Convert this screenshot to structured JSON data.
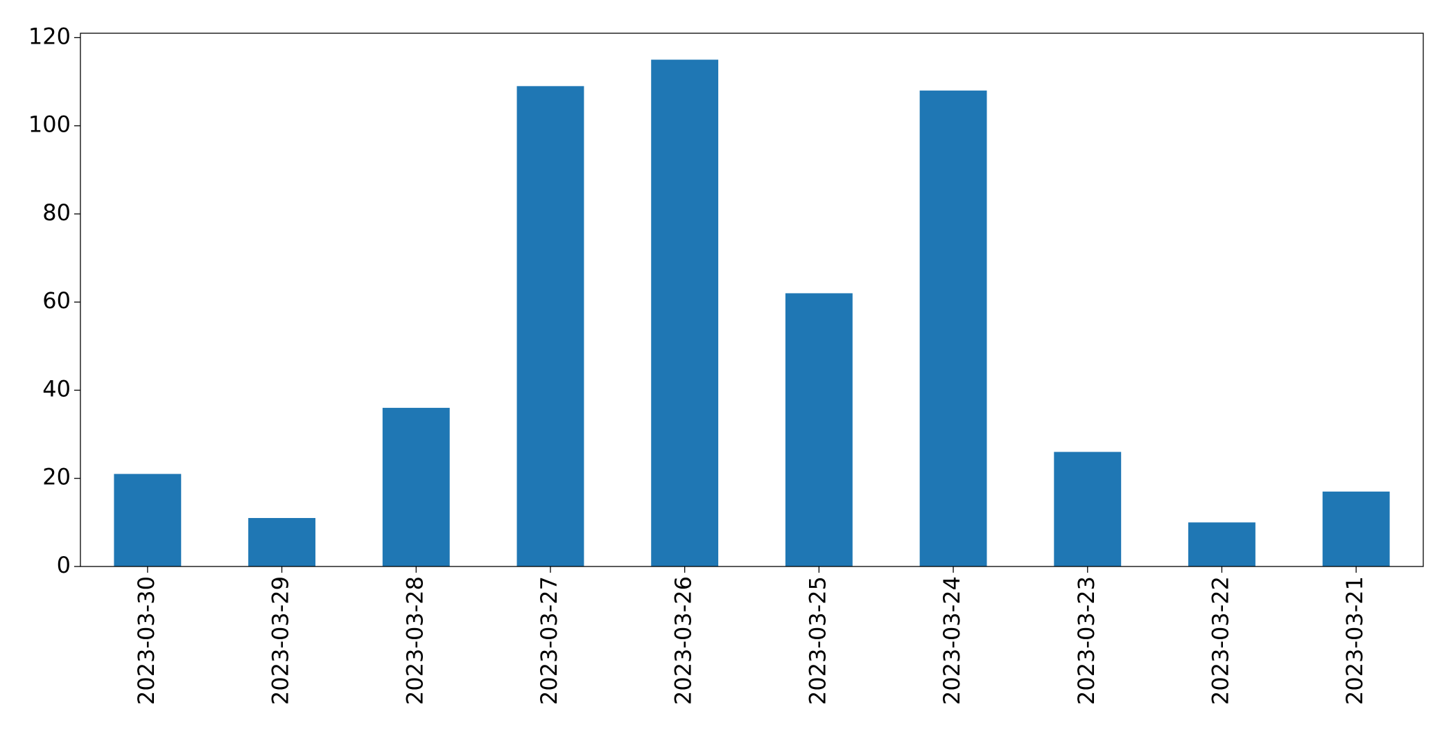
{
  "chart_data": {
    "type": "bar",
    "categories": [
      "2023-03-30",
      "2023-03-29",
      "2023-03-28",
      "2023-03-27",
      "2023-03-26",
      "2023-03-25",
      "2023-03-24",
      "2023-03-23",
      "2023-03-22",
      "2023-03-21"
    ],
    "values": [
      21,
      11,
      36,
      109,
      115,
      62,
      108,
      26,
      10,
      17
    ],
    "color": "#1f77b4",
    "ylim": [
      0,
      121
    ],
    "yticks": [
      0,
      20,
      40,
      60,
      80,
      100,
      120
    ],
    "grid": false
  }
}
